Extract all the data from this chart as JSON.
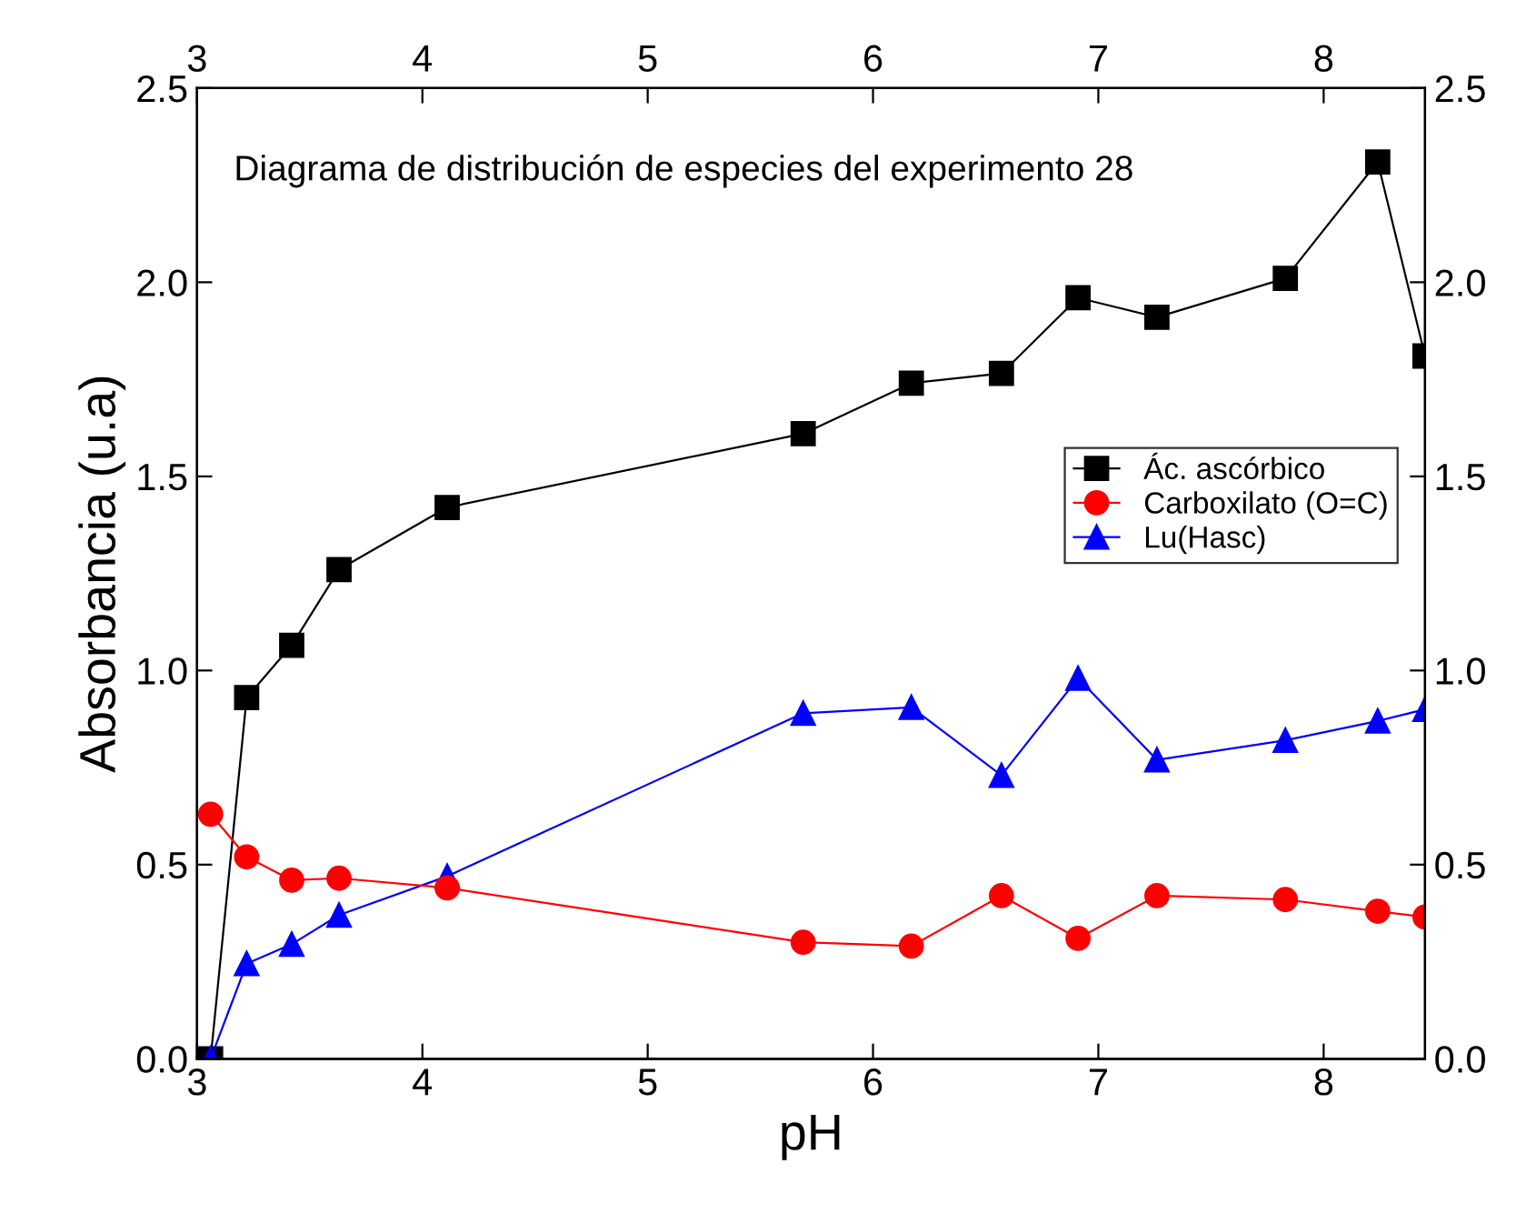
{
  "chart_data": {
    "type": "line",
    "xlabel": "pH",
    "ylabel": "Absorbancia (u.a)",
    "annotations": [
      "Diagrama de distribución de especies del experimento 28"
    ],
    "x": [
      3.06,
      3.22,
      3.42,
      3.63,
      4.11,
      5.69,
      6.17,
      6.57,
      6.91,
      7.26,
      7.83,
      8.24,
      8.45
    ],
    "series": [
      {
        "name": "Ác. ascórbico",
        "color": "#000000",
        "marker": "square",
        "values": [
          0,
          0.93,
          1.065,
          1.26,
          1.42,
          1.61,
          1.74,
          1.765,
          1.96,
          1.91,
          2.01,
          2.31,
          1.81
        ]
      },
      {
        "name": "Carboxilato (O=C)",
        "color": "#ff0000",
        "marker": "circle",
        "values": [
          0.63,
          0.52,
          0.46,
          0.465,
          0.44,
          0.3,
          0.29,
          0.42,
          0.31,
          0.42,
          0.41,
          0.38,
          0.365
        ]
      },
      {
        "name": "Lu(Hasc)",
        "color": "#0000ff",
        "marker": "triangle",
        "values": [
          0,
          0.245,
          0.295,
          0.37,
          0.47,
          0.89,
          0.905,
          0.73,
          0.98,
          0.77,
          0.82,
          0.87,
          0.9
        ]
      }
    ],
    "xlim": [
      3,
      8.45
    ],
    "xticks": [
      3,
      4,
      5,
      6,
      7,
      8
    ],
    "x2lim": [
      3,
      8.45
    ],
    "x2ticks": [
      3,
      4,
      5,
      6,
      7,
      8
    ],
    "ylim": [
      0,
      2.5
    ],
    "yticks": [
      {
        "value": 0,
        "label": "0.0"
      },
      0.5,
      {
        "value": 1,
        "label": "1.0"
      },
      1.5,
      {
        "value": 2,
        "label": "2.0"
      },
      2.5
    ],
    "y2lim": [
      0,
      2.5
    ],
    "y2ticks": [
      {
        "value": 0,
        "label": "0.0"
      },
      0.5,
      {
        "value": 1,
        "label": "1.0"
      },
      1.5,
      {
        "value": 2,
        "label": "2.0"
      },
      2.5
    ],
    "grid": false,
    "legend": "center right",
    "line_style": "solid"
  }
}
